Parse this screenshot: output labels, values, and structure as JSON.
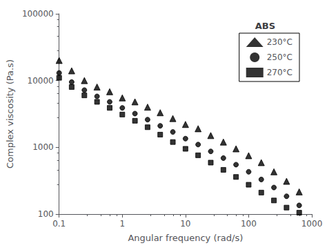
{
  "chart_data": {
    "type": "scatter",
    "title": "ABS",
    "xlabel": "Angular frequency (rad/s)",
    "ylabel": "Complex viscosity (Pa.s)",
    "log": true,
    "xlim": [
      0.1,
      1000
    ],
    "ylim": [
      100,
      100000
    ],
    "xticks": [
      0.1,
      1,
      10,
      100,
      1000
    ],
    "yticks": [
      100,
      1000,
      10000,
      100000
    ],
    "grid": false,
    "legend": "upper right",
    "series": [
      {
        "name": "230°C",
        "marker": "triangle",
        "color": "#000000",
        "x": [
          0.1,
          0.158,
          0.251,
          0.398,
          0.631,
          1.0,
          1.585,
          2.512,
          3.981,
          6.31,
          10.0,
          15.85,
          25.12,
          39.81,
          63.1,
          100.0,
          158.5,
          251.2,
          398.1,
          631.0
        ],
        "values": [
          20000,
          14000,
          10000,
          8000,
          6800,
          5500,
          4800,
          4000,
          3300,
          2700,
          2200,
          1900,
          1500,
          1200,
          950,
          750,
          590,
          430,
          310,
          215
        ]
      },
      {
        "name": "250°C",
        "marker": "circle",
        "color": "#000000",
        "x": [
          0.1,
          0.158,
          0.251,
          0.398,
          0.631,
          1.0,
          1.585,
          2.512,
          3.981,
          6.31,
          10.0,
          15.85,
          25.12,
          39.81,
          63.1,
          100.0,
          158.5,
          251.2,
          398.1,
          631.0
        ],
        "values": [
          13000,
          9500,
          7200,
          5800,
          4800,
          3900,
          3200,
          2600,
          2100,
          1700,
          1350,
          1100,
          870,
          690,
          550,
          430,
          330,
          250,
          185,
          135
        ]
      },
      {
        "name": "270°C",
        "marker": "square",
        "color": "#000000",
        "x": [
          0.1,
          0.158,
          0.251,
          0.398,
          0.631,
          1.0,
          1.585,
          2.512,
          3.981,
          6.31,
          10.0,
          15.85,
          25.12,
          39.81,
          63.1,
          100.0,
          158.5,
          251.2,
          398.1,
          631.0
        ],
        "values": [
          11000,
          8000,
          6000,
          4800,
          3900,
          3100,
          2500,
          2000,
          1550,
          1200,
          950,
          760,
          590,
          460,
          360,
          275,
          210,
          160,
          125,
          105
        ]
      }
    ]
  }
}
